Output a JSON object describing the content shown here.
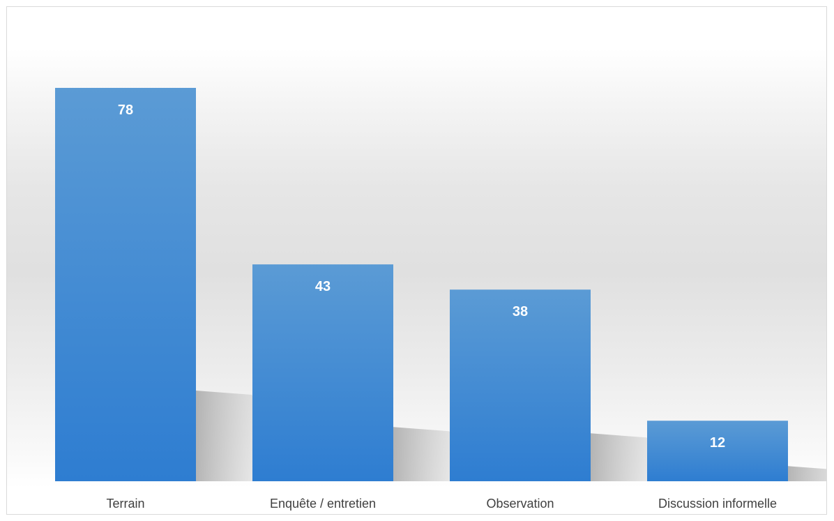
{
  "chart_data": {
    "type": "bar",
    "title": "",
    "xlabel": "",
    "ylabel": "",
    "categories": [
      "Terrain",
      "Enquête / entretien",
      "Observation",
      "Discussion informelle"
    ],
    "values": [
      78,
      43,
      38,
      12
    ],
    "ylim": [
      0,
      78
    ],
    "grid": false,
    "legend": "none",
    "data_labels": true,
    "colors": {
      "bar_top": "#5b9bd5",
      "bar_bottom": "#2e7dd1",
      "shadow": "#b8b8b8",
      "label_text": "#ffffff",
      "category_text": "#404040",
      "border": "#d9d9d9"
    }
  }
}
